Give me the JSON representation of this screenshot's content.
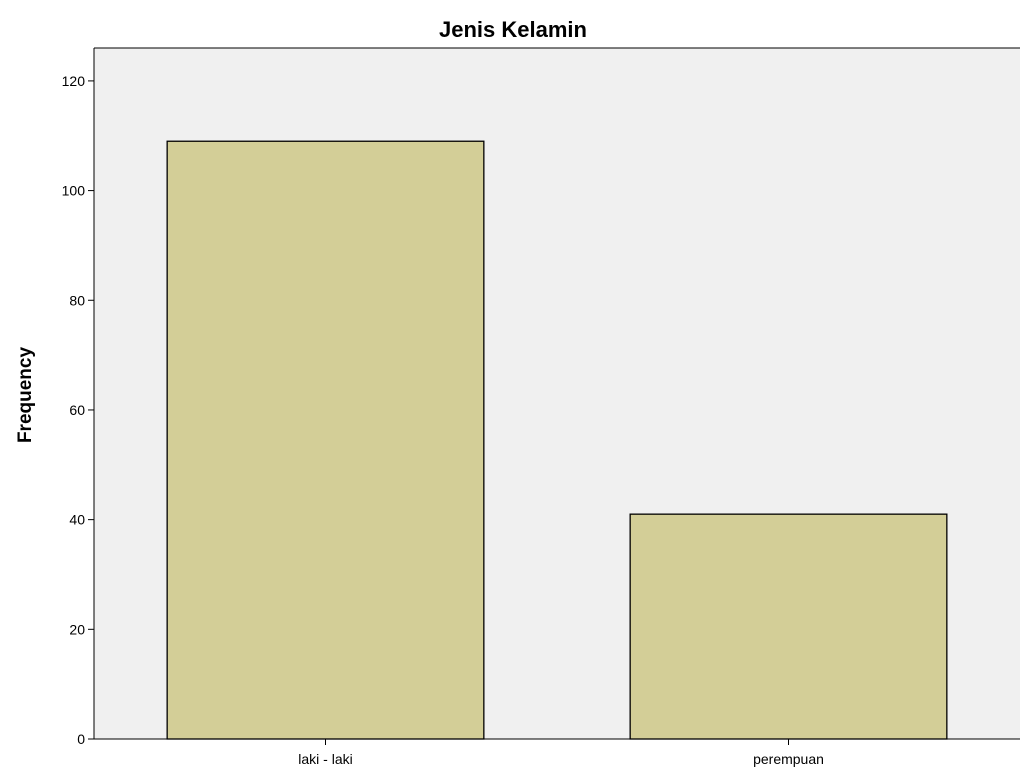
{
  "chart_data": {
    "type": "bar",
    "title": "Jenis Kelamin",
    "xlabel": "",
    "ylabel": "Frequency",
    "categories": [
      "laki - laki",
      "perempuan"
    ],
    "values": [
      109,
      41
    ],
    "ylim": [
      0,
      126
    ],
    "yticks": [
      0,
      20,
      40,
      60,
      80,
      100,
      120
    ],
    "grid": false,
    "legend": "none"
  },
  "colors": {
    "plot_background": "#f0f0f0",
    "bar_fill": "#d3ce97",
    "bar_stroke": "#000000",
    "axis": "#000000"
  }
}
